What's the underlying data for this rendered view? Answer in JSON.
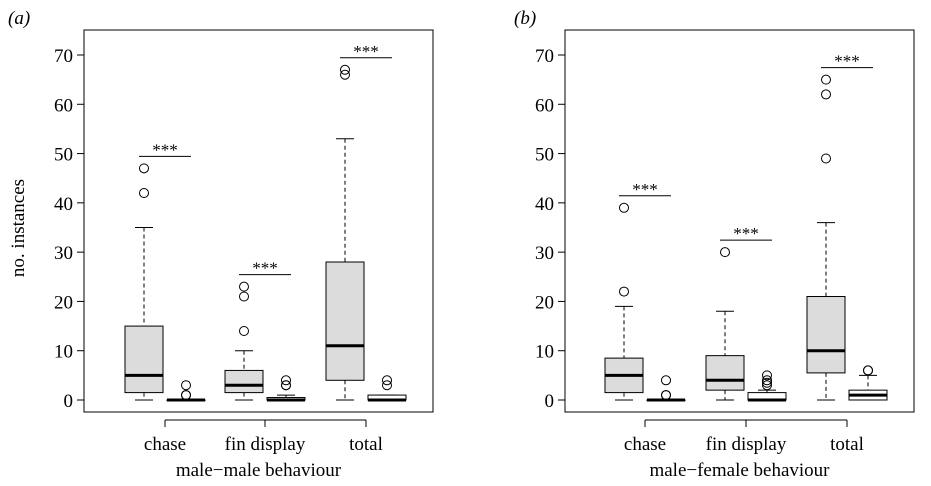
{
  "figure": {
    "ylabel": "no. instances"
  },
  "colors": {
    "group_a_box": "#dcdcdc",
    "group_b_box": "#ffffff",
    "stroke": "#000000"
  },
  "chart_data": [
    {
      "type": "box",
      "panel_label": "(a)",
      "xlabel": "male−male behaviour",
      "ylabel": "no. instances",
      "ylim": [
        0,
        70
      ],
      "yticks": [
        0,
        10,
        20,
        30,
        40,
        50,
        60,
        70
      ],
      "categories": [
        "chase",
        "fin display",
        "total"
      ],
      "groups": [
        {
          "category": "chase",
          "significance": "***",
          "boxes": [
            {
              "min": 0,
              "q1": 1.5,
              "median": 5,
              "q3": 15,
              "max": 35,
              "outliers": [
                42,
                47
              ]
            },
            {
              "min": 0,
              "q1": 0,
              "median": 0,
              "q3": 0,
              "max": 0,
              "outliers": [
                1,
                1,
                3
              ]
            }
          ]
        },
        {
          "category": "fin display",
          "significance": "***",
          "boxes": [
            {
              "min": 0,
              "q1": 1.5,
              "median": 3,
              "q3": 6,
              "max": 10,
              "outliers": [
                14,
                21,
                23
              ]
            },
            {
              "min": 0,
              "q1": 0,
              "median": 0,
              "q3": 0.5,
              "max": 1,
              "outliers": [
                3,
                3,
                4
              ]
            }
          ]
        },
        {
          "category": "total",
          "significance": "***",
          "boxes": [
            {
              "min": 0,
              "q1": 4,
              "median": 11,
              "q3": 28,
              "max": 53,
              "outliers": [
                66,
                67
              ]
            },
            {
              "min": 0,
              "q1": 0,
              "median": 0,
              "q3": 1,
              "max": 1,
              "outliers": [
                3,
                4
              ]
            }
          ]
        }
      ]
    },
    {
      "type": "box",
      "panel_label": "(b)",
      "xlabel": "male−female behaviour",
      "ylabel": "",
      "ylim": [
        0,
        70
      ],
      "yticks": [
        0,
        10,
        20,
        30,
        40,
        50,
        60,
        70
      ],
      "categories": [
        "chase",
        "fin display",
        "total"
      ],
      "groups": [
        {
          "category": "chase",
          "significance": "***",
          "boxes": [
            {
              "min": 0,
              "q1": 1.5,
              "median": 5,
              "q3": 8.5,
              "max": 19,
              "outliers": [
                22,
                39
              ]
            },
            {
              "min": 0,
              "q1": 0,
              "median": 0,
              "q3": 0,
              "max": 0,
              "outliers": [
                1,
                1,
                4
              ]
            }
          ]
        },
        {
          "category": "fin display",
          "significance": "***",
          "boxes": [
            {
              "min": 0,
              "q1": 2,
              "median": 4,
              "q3": 9,
              "max": 18,
              "outliers": [
                30
              ]
            },
            {
              "min": 0,
              "q1": 0,
              "median": 0,
              "q3": 1.5,
              "max": 2,
              "outliers": [
                3,
                3.5,
                4,
                5
              ]
            }
          ]
        },
        {
          "category": "total",
          "significance": "***",
          "boxes": [
            {
              "min": 0,
              "q1": 5.5,
              "median": 10,
              "q3": 21,
              "max": 36,
              "outliers": [
                49,
                62,
                65
              ]
            },
            {
              "min": 0,
              "q1": 0,
              "median": 1,
              "q3": 2,
              "max": 5,
              "outliers": [
                6,
                6
              ]
            }
          ]
        }
      ]
    }
  ]
}
